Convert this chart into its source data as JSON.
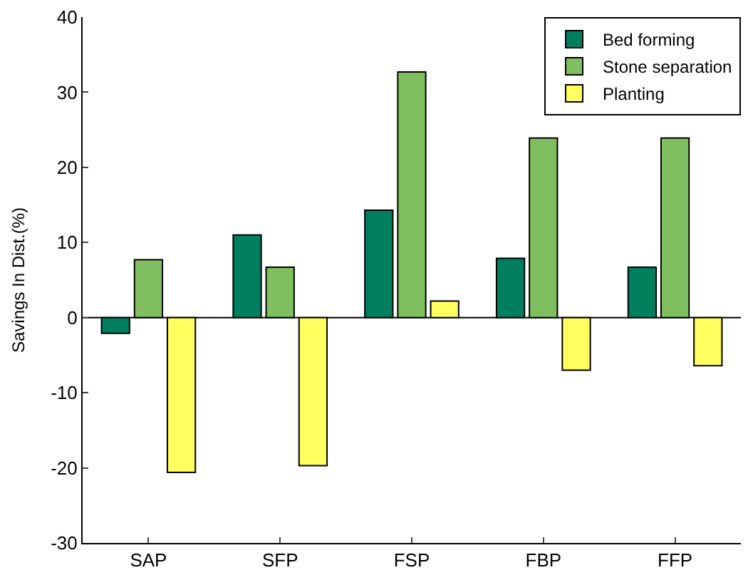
{
  "chart_data": {
    "type": "bar",
    "ylabel": "Savings In Dist.(%)",
    "categories": [
      "SAP",
      "SFP",
      "FSP",
      "FBP",
      "FFP"
    ],
    "series": [
      {
        "name": "Bed forming",
        "color": "#007f5f",
        "values": [
          -2.1,
          11.0,
          14.3,
          7.9,
          6.7
        ]
      },
      {
        "name": "Stone separation",
        "color": "#7fbf5f",
        "values": [
          7.7,
          6.7,
          32.7,
          23.9,
          23.9
        ]
      },
      {
        "name": "Planting",
        "color": "#ffff5f",
        "values": [
          -20.6,
          -19.7,
          2.2,
          -7.0,
          -6.4
        ]
      }
    ],
    "ylim": [
      -30,
      40
    ],
    "yticks": [
      -30,
      -20,
      -10,
      0,
      10,
      20,
      30,
      40
    ],
    "ref_lines": [
      {
        "axis": "y",
        "value": 0,
        "color": "#000000"
      }
    ],
    "legend": "top right"
  }
}
